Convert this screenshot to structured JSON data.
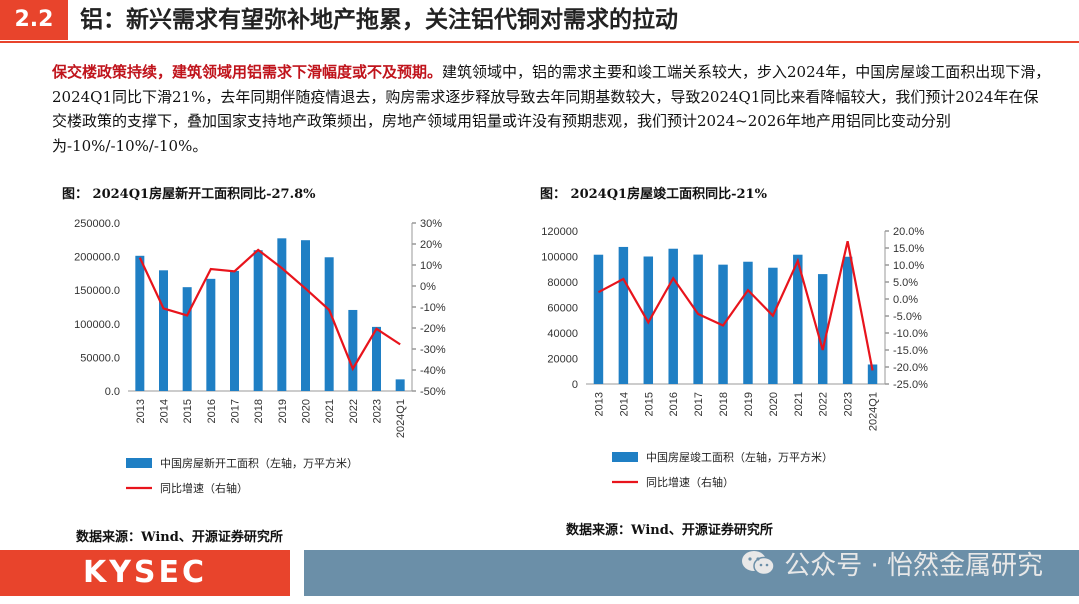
{
  "header": {
    "section": "2.2",
    "title": "铝：新兴需求有望弥补地产拖累，关注铝代铜对需求的拉动"
  },
  "paragraph": {
    "lead": "保交楼政策持续，建筑领域用铝需求下滑幅度或不及预期。",
    "body": "建筑领域中，铝的需求主要和竣工端关系较大，步入2024年，中国房屋竣工面积出现下滑，2024Q1同比下滑21%，去年同期伴随疫情退去，购房需求逐步释放导致去年同期基数较大，导致2024Q1同比来看降幅较大，我们预计2024年在保交楼政策的支撑下，叠加国家支持地产政策频出，房地产领域用铝量或许没有预期悲观，我们预计2024~2026年地产用铝同比变动分别为-10%/-10%/-10%。"
  },
  "chart_data": [
    {
      "type": "bar",
      "title": "图： 2024Q1房屋新开工面积同比-27.8%",
      "categories": [
        "2013",
        "2014",
        "2015",
        "2016",
        "2017",
        "2018",
        "2019",
        "2020",
        "2021",
        "2022",
        "2023",
        "2024Q1"
      ],
      "left_axis": {
        "min": 0,
        "max": 250000,
        "ticks": [
          "0.0",
          "50000.0",
          "100000.0",
          "150000.0",
          "200000.0",
          "250000.0"
        ]
      },
      "right_axis": {
        "min": -50,
        "max": 30,
        "ticks": [
          "-50%",
          "-40%",
          "-30%",
          "-20%",
          "-10%",
          "0%",
          "10%",
          "20%",
          "30%"
        ]
      },
      "series": [
        {
          "name": "中国房屋新开工面积（左轴，万平方米）",
          "type": "bar",
          "color": "#1f7fc4",
          "values": [
            201200,
            179600,
            154500,
            166900,
            178700,
            209500,
            227200,
            224400,
            199000,
            120600,
            95400,
            17300
          ]
        },
        {
          "name": "同比增速（右轴）",
          "type": "line",
          "color": "#e8141c",
          "values": [
            13.5,
            -10.7,
            -14.0,
            8.1,
            7.0,
            17.2,
            8.5,
            -1.2,
            -11.4,
            -39.4,
            -20.4,
            -27.8
          ]
        }
      ],
      "source": "数据来源：Wind、开源证券研究所"
    },
    {
      "type": "bar",
      "title": "图： 2024Q1房屋竣工面积同比-21%",
      "categories": [
        "2013",
        "2014",
        "2015",
        "2016",
        "2017",
        "2018",
        "2019",
        "2020",
        "2021",
        "2022",
        "2023",
        "2024Q1"
      ],
      "left_axis": {
        "min": 0,
        "max": 120000,
        "ticks": [
          "0",
          "20000",
          "40000",
          "60000",
          "80000",
          "100000",
          "120000"
        ]
      },
      "right_axis": {
        "min": -25,
        "max": 20,
        "ticks": [
          "-25.0%",
          "-20.0%",
          "-15.0%",
          "-10.0%",
          "-5.0%",
          "0.0%",
          "5.0%",
          "10.0%",
          "15.0%",
          "20.0%"
        ]
      },
      "series": [
        {
          "name": "中国房屋竣工面积（左轴，万平方米）",
          "type": "bar",
          "color": "#1f7fc4",
          "values": [
            101400,
            107500,
            100000,
            106100,
            101500,
            93600,
            95900,
            91200,
            101400,
            86200,
            99800,
            15300
          ]
        },
        {
          "name": "同比增速（右轴）",
          "type": "line",
          "color": "#e8141c",
          "values": [
            2.0,
            5.9,
            -6.9,
            6.1,
            -4.4,
            -7.8,
            2.6,
            -4.9,
            11.2,
            -15.0,
            17.0,
            -21.0
          ]
        }
      ],
      "source": "数据来源：Wind、开源证券研究所"
    }
  ],
  "footer": {
    "logo": "KYSEC",
    "watermark": "公众号 · 怡然金属研究"
  },
  "icons": {
    "wechat": "wechat-icon"
  }
}
